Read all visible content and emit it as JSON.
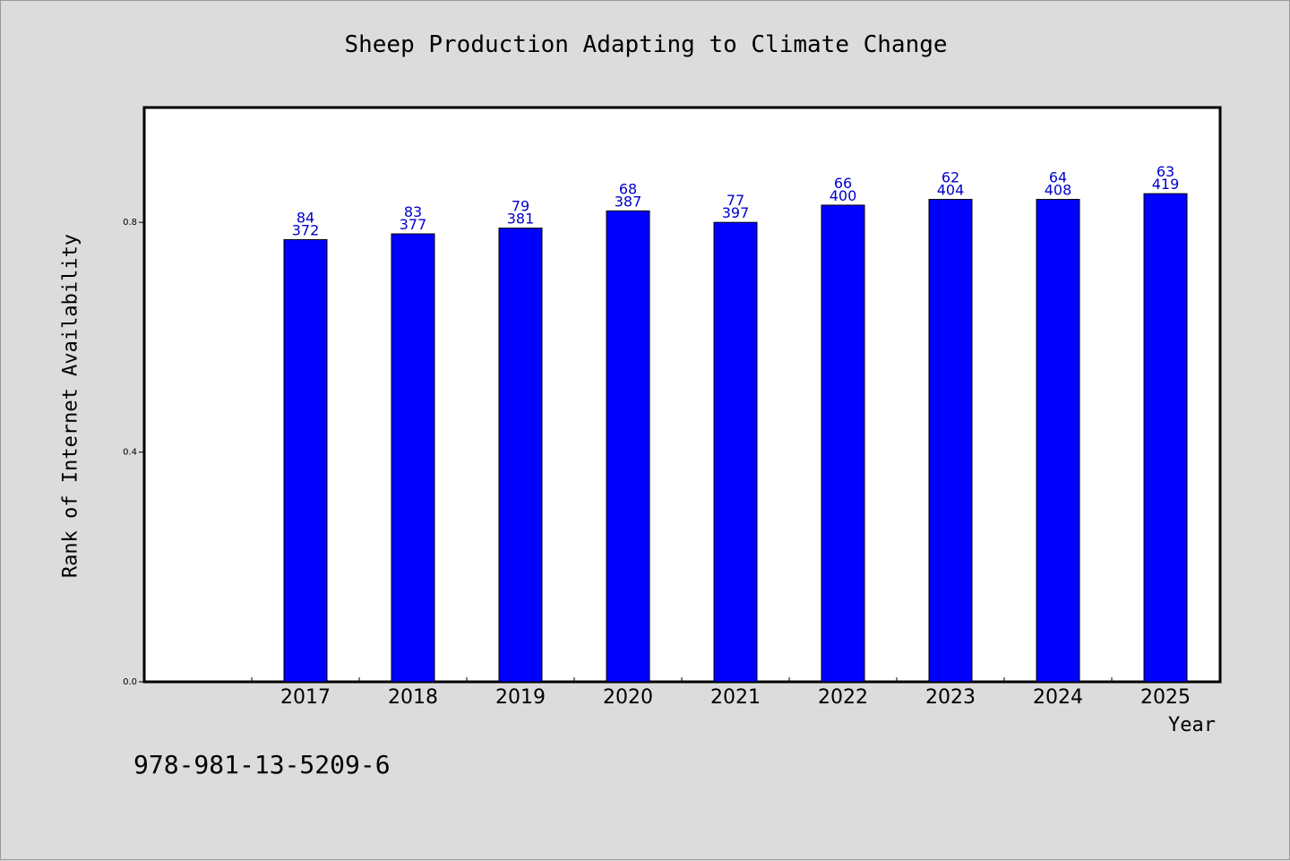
{
  "chart_data": {
    "type": "bar",
    "title": "Sheep Production Adapting to Climate Change",
    "xlabel": "Year",
    "ylabel": "Rank of Internet Availability",
    "categories": [
      "2017",
      "2018",
      "2019",
      "2020",
      "2021",
      "2022",
      "2023",
      "2024",
      "2025"
    ],
    "values": [
      0.77,
      0.78,
      0.79,
      0.82,
      0.8,
      0.83,
      0.84,
      0.84,
      0.85
    ],
    "label_top": [
      "84",
      "83",
      "79",
      "68",
      "77",
      "66",
      "62",
      "64",
      "63"
    ],
    "label_bottom": [
      "372",
      "377",
      "381",
      "387",
      "397",
      "400",
      "404",
      "408",
      "419"
    ],
    "yticks": [
      0.0,
      0.4,
      0.8
    ],
    "ytick_labels": [
      "0.0",
      "0.4",
      "0.8"
    ],
    "ylim": [
      0,
      1.0
    ],
    "grid": false,
    "colors": {
      "bar": "#0000ff",
      "bar_edge": "#000000",
      "label": "#0000cc",
      "plot_bg": "#ffffff",
      "page_bg": "#dcdcdc"
    }
  },
  "footnote": "978-981-13-5209-6"
}
